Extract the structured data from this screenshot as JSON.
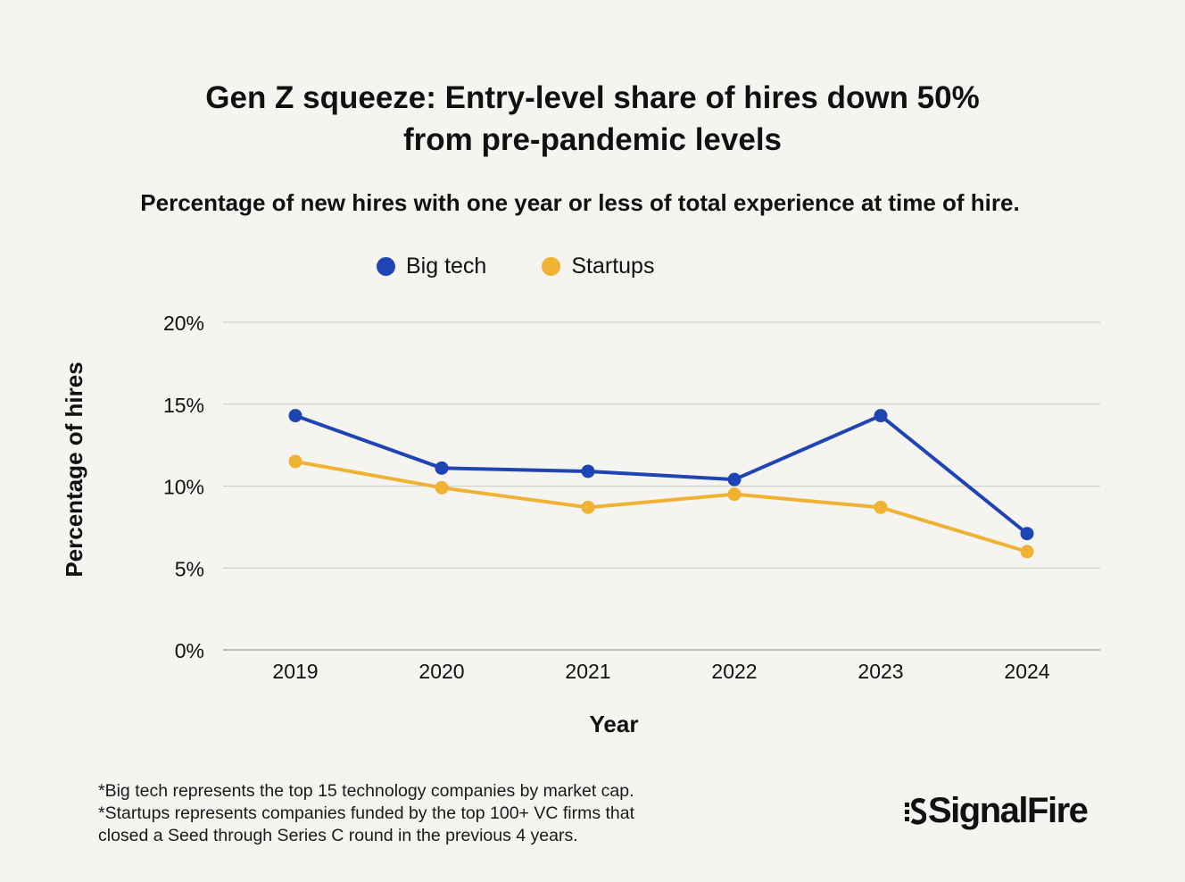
{
  "header": {
    "title_line1": "Gen Z squeeze: Entry-level share of hires down 50%",
    "title_line2": "from pre-pandemic levels",
    "subtitle": "Percentage of new hires with one year or less of total experience at time of hire."
  },
  "chart_data": {
    "type": "line",
    "x": [
      "2019",
      "2020",
      "2021",
      "2022",
      "2023",
      "2024"
    ],
    "series": [
      {
        "name": "Big tech",
        "color": "#1f44b3",
        "values": [
          14.3,
          11.1,
          10.9,
          10.4,
          14.3,
          7.1
        ]
      },
      {
        "name": "Startups",
        "color": "#f0b232",
        "values": [
          11.5,
          9.9,
          8.7,
          9.5,
          8.7,
          6.0
        ]
      }
    ],
    "xlabel": "Year",
    "ylabel": "Percentage of hires",
    "ylim": [
      0,
      20
    ],
    "yticks": [
      0,
      5,
      10,
      15,
      20
    ],
    "ytick_labels": [
      "0%",
      "5%",
      "10%",
      "15%",
      "20%"
    ],
    "grid": true,
    "legend_position": "top-center"
  },
  "footnotes": [
    "*Big tech represents the top 15 technology companies by market cap.",
    "*Startups represents companies funded by the top 100+ VC firms that",
    "closed a Seed through Series C round in the previous 4 years."
  ],
  "logo": {
    "text": "SignalFire"
  }
}
